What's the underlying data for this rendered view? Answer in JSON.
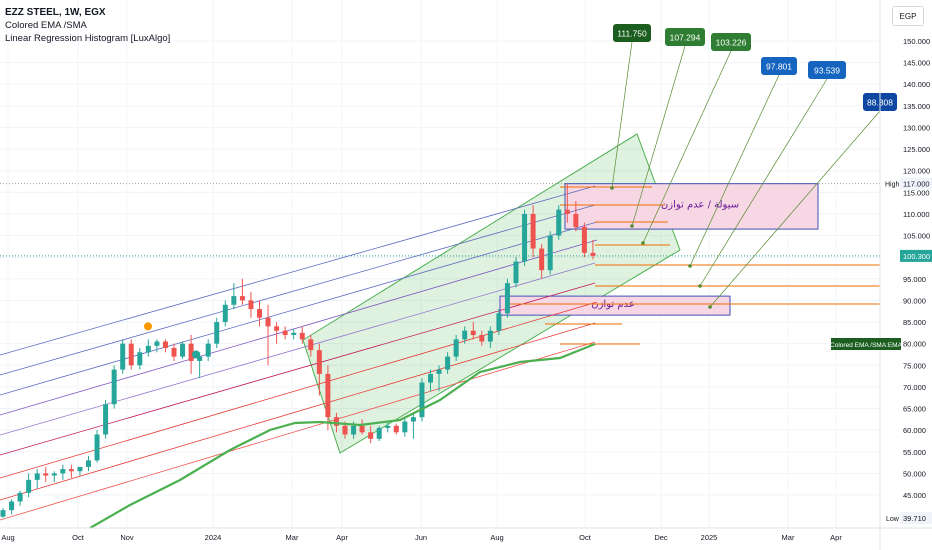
{
  "header": {
    "symbol_line": "EZZ STEEL, 1W, EGX",
    "indicator_1": "Colored EMA /SMA",
    "indicator_2": "Linear Regression Histogram [LuxAlgo]",
    "currency": "EGP"
  },
  "chart_data": {
    "type": "candlestick",
    "y_axis": {
      "ticks": [
        "150.000",
        "145.000",
        "140.000",
        "135.000",
        "130.000",
        "125.000",
        "120.000",
        "115.000",
        "110.000",
        "105.000",
        "100.000",
        "95.000",
        "90.000",
        "85.000",
        "80.000",
        "75.000",
        "70.000",
        "65.000",
        "60.000",
        "55.000",
        "50.000",
        "45.000"
      ],
      "range": [
        38,
        155
      ],
      "current_price": "100.300",
      "high_label": "High",
      "high_value": "117.000",
      "low_label": "Low",
      "low_value": "39.710"
    },
    "x_axis": {
      "ticks": [
        "Aug",
        "Oct",
        "Nov",
        "2024",
        "Mar",
        "Apr",
        "Jun",
        "Aug",
        "Oct",
        "Dec",
        "2025",
        "Mar",
        "Apr"
      ]
    },
    "candles": [
      [
        40,
        42,
        39.7,
        41.5
      ],
      [
        41.5,
        44,
        40.5,
        43.5
      ],
      [
        43.5,
        46,
        42.5,
        45.5
      ],
      [
        45.5,
        50,
        44.5,
        48.5
      ],
      [
        48.5,
        51,
        46.5,
        50
      ],
      [
        50,
        51.5,
        48,
        49.5
      ],
      [
        49.5,
        50.5,
        48,
        50
      ],
      [
        50,
        52,
        48.5,
        51
      ],
      [
        51,
        52,
        49,
        50.5
      ],
      [
        50.5,
        51.5,
        49.5,
        51.5
      ],
      [
        51.5,
        54,
        50.5,
        53
      ],
      [
        53,
        60,
        52.5,
        59
      ],
      [
        59,
        67,
        58,
        66
      ],
      [
        66,
        75,
        65,
        74
      ],
      [
        74,
        81,
        73,
        80
      ],
      [
        80,
        81,
        74,
        75
      ],
      [
        75,
        79,
        74,
        78
      ],
      [
        78,
        81,
        77,
        79.5
      ],
      [
        79.5,
        81,
        78,
        80.5
      ],
      [
        80.5,
        81,
        78,
        79
      ],
      [
        79,
        80,
        76,
        77
      ],
      [
        77,
        80.5,
        76.5,
        80
      ],
      [
        80,
        82,
        73,
        76
      ],
      [
        76,
        78,
        72,
        77
      ],
      [
        77,
        81,
        76,
        80
      ],
      [
        80,
        86,
        79,
        85
      ],
      [
        85,
        90,
        84,
        89
      ],
      [
        89,
        94,
        88,
        91
      ],
      [
        91,
        95,
        89,
        90
      ],
      [
        90,
        92,
        86,
        88
      ],
      [
        88,
        90,
        84,
        86
      ],
      [
        86,
        89,
        75,
        84
      ],
      [
        84,
        85,
        80,
        83
      ],
      [
        83,
        84,
        81,
        82
      ],
      [
        82,
        83.5,
        81,
        82.5
      ],
      [
        82.5,
        84,
        80,
        81
      ],
      [
        81,
        82,
        77,
        78.5
      ],
      [
        78.5,
        80,
        68,
        73
      ],
      [
        73,
        75,
        60,
        63
      ],
      [
        63,
        64,
        59.5,
        61
      ],
      [
        61,
        62,
        58,
        59
      ],
      [
        59,
        62,
        58,
        61
      ],
      [
        61,
        62.5,
        59,
        59.5
      ],
      [
        59.5,
        61,
        57,
        58
      ],
      [
        58,
        61,
        57.5,
        60.5
      ],
      [
        60.5,
        62,
        59.5,
        61
      ],
      [
        61,
        61.5,
        59,
        59.5
      ],
      [
        59.5,
        63,
        58.5,
        62
      ],
      [
        62,
        64,
        58,
        63
      ],
      [
        63,
        72,
        62,
        71
      ],
      [
        71,
        74,
        69,
        73
      ],
      [
        73,
        75,
        69,
        74
      ],
      [
        74,
        78,
        73,
        77
      ],
      [
        77,
        82,
        76,
        81
      ],
      [
        81,
        84,
        80,
        83
      ],
      [
        83,
        85,
        81,
        82
      ],
      [
        82,
        83,
        79.5,
        80.5
      ],
      [
        80.5,
        84,
        79,
        83
      ],
      [
        83,
        88,
        82,
        87
      ],
      [
        87,
        95,
        86,
        94
      ],
      [
        94,
        100,
        93,
        99
      ],
      [
        99,
        111,
        98,
        110
      ],
      [
        110,
        112,
        100,
        102
      ],
      [
        102,
        103,
        95,
        97
      ],
      [
        97,
        106,
        96,
        105
      ],
      [
        105,
        112,
        104,
        111
      ],
      [
        111,
        117,
        108,
        110
      ],
      [
        110,
        113,
        106,
        107
      ],
      [
        107,
        108,
        100,
        101
      ],
      [
        101,
        104,
        99.5,
        100.3
      ]
    ],
    "projection_labels": [
      "111.750",
      "107.294",
      "103.226",
      "97.801",
      "93.539",
      "88.308"
    ],
    "zone_labels": [
      "سيولة / عدم توازن",
      "عدم توازن"
    ],
    "ema_label": "Colored EMA /SMA:EMA",
    "colors": {
      "bull": "#26a69a",
      "bear": "#ef5350",
      "ema": "#2e7d32",
      "zone_fill": "#f8d7e4",
      "zone_border": "#3f51b5",
      "channel": "#4caf50",
      "green_box": "#2e7d32",
      "blue_box": "#1565c0"
    }
  }
}
